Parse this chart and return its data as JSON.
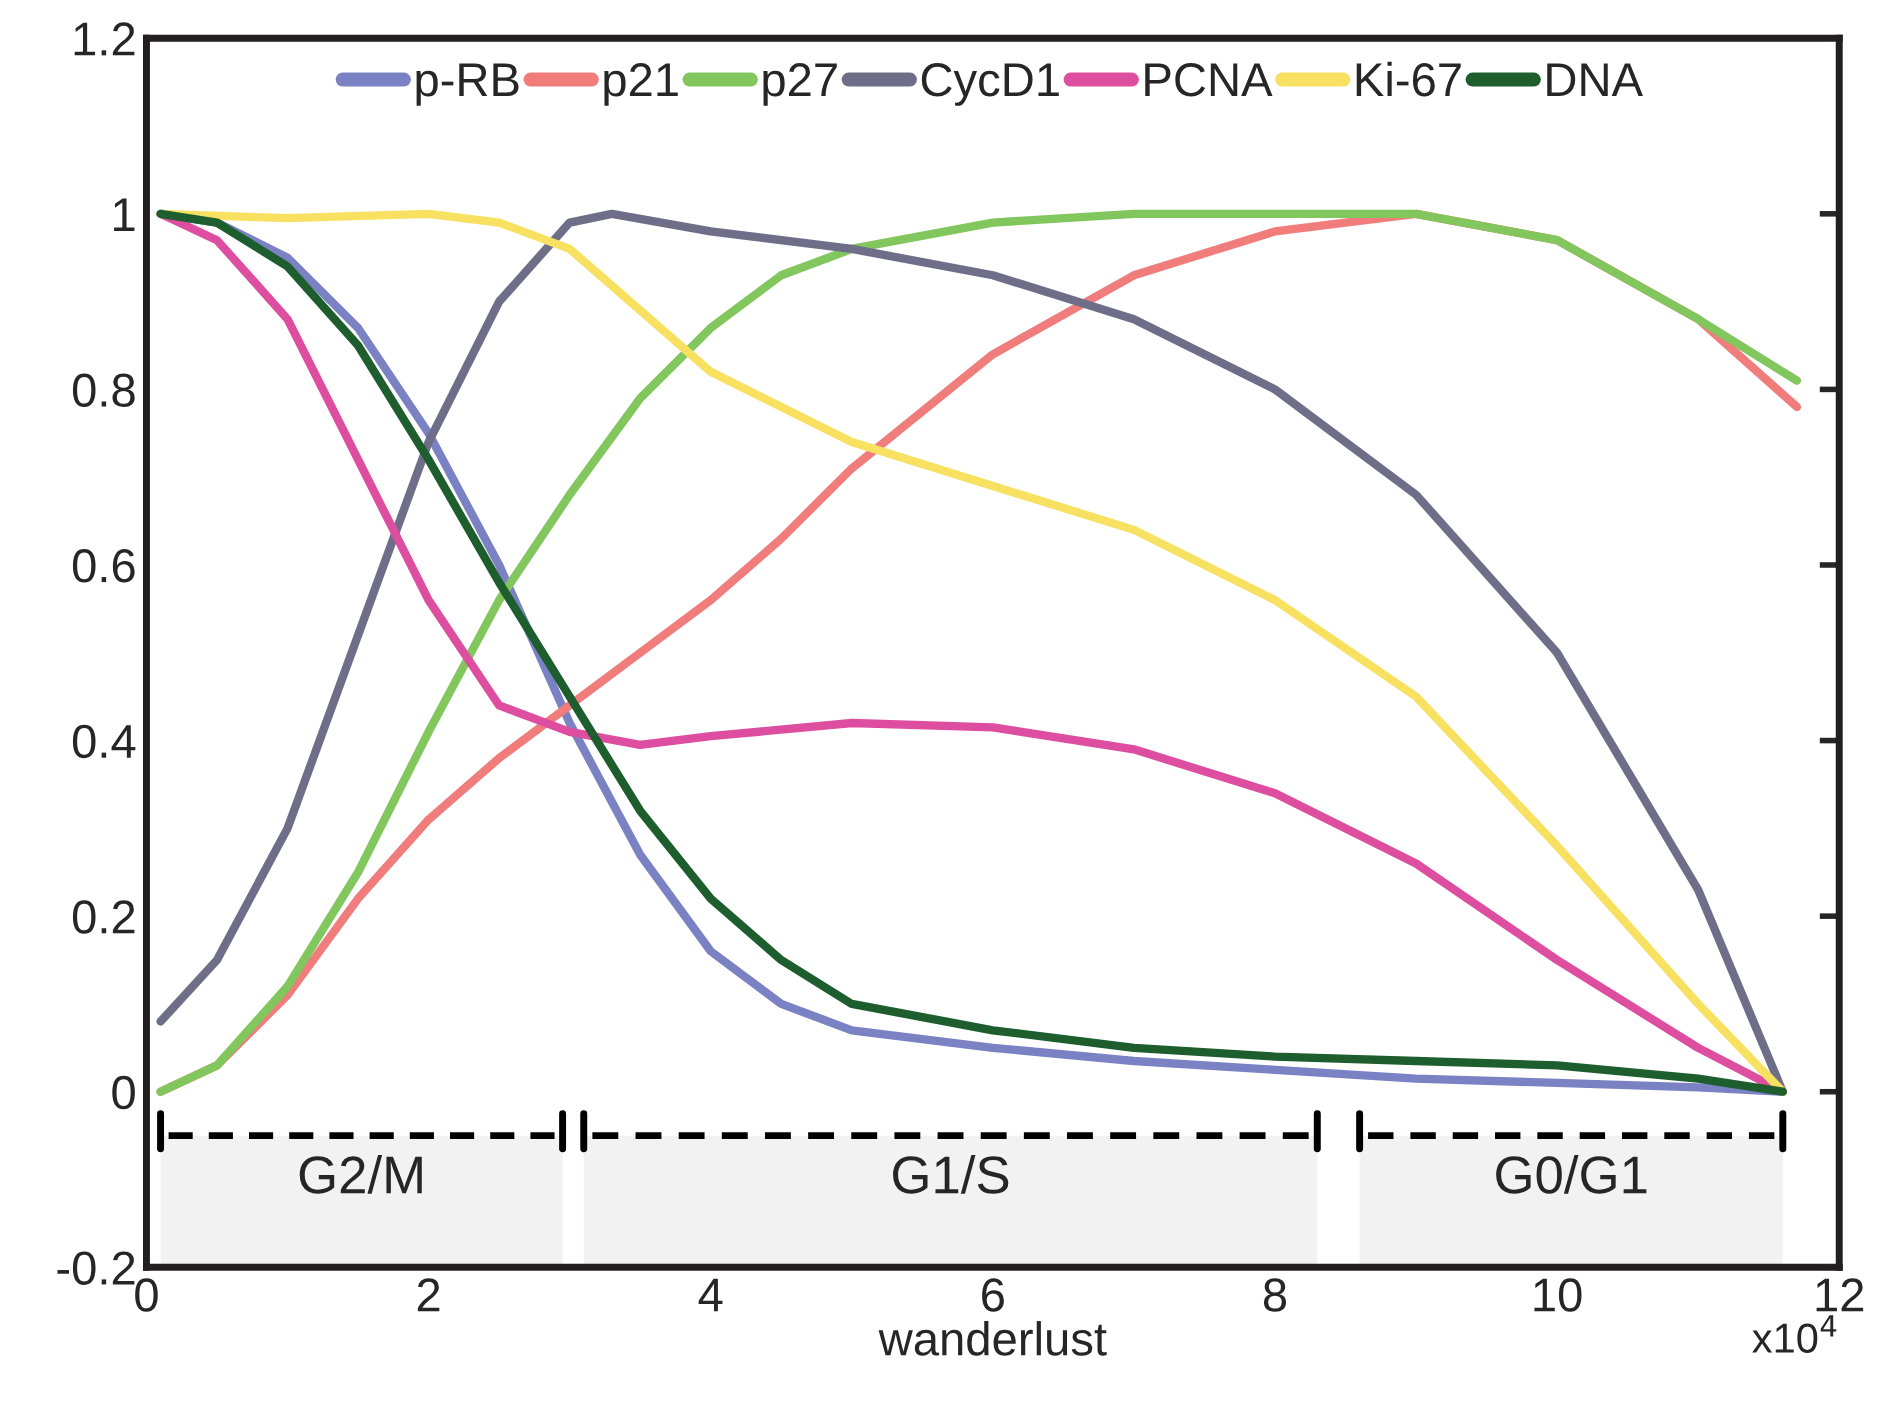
{
  "chart_data": {
    "type": "line",
    "xlabel": "wanderlust",
    "xlim": [
      0,
      12
    ],
    "xticks": [
      0,
      2,
      4,
      6,
      8,
      10,
      12
    ],
    "ylim": [
      -0.2,
      1.2
    ],
    "yticks": [
      -0.2,
      0,
      0.2,
      0.4,
      0.6,
      0.8,
      1,
      1.2
    ],
    "grid": false,
    "legend": "top",
    "marker": "none",
    "line_style": "solid",
    "annotations": [
      "x10$^{4}$"
    ],
    "bands": [
      {
        "axis": "x",
        "from": 0.1,
        "to": 2.95,
        "label": "G2/M",
        "color": "#000000"
      },
      {
        "axis": "x",
        "from": 3.1,
        "to": 8.3,
        "label": "G1/S",
        "color": "#000000"
      },
      {
        "axis": "x",
        "from": 8.6,
        "to": 11.6,
        "label": "G0/G1",
        "color": "#000000"
      }
    ],
    "series": [
      {
        "name": "p-RB",
        "color": "#7b82c4",
        "x": [
          0.1,
          0.5,
          1,
          1.5,
          2,
          2.5,
          3,
          3.5,
          4,
          4.5,
          5,
          6,
          7,
          8,
          9,
          10,
          11,
          11.6
        ],
        "values": [
          1.0,
          0.99,
          0.95,
          0.87,
          0.75,
          0.6,
          0.42,
          0.27,
          0.16,
          0.1,
          0.07,
          0.05,
          0.035,
          0.025,
          0.015,
          0.01,
          0.005,
          0.0
        ]
      },
      {
        "name": "p21",
        "color": "#f07c7c",
        "x": [
          0.1,
          0.5,
          1,
          1.5,
          2,
          2.5,
          3,
          3.5,
          4,
          4.5,
          5,
          6,
          7,
          8,
          9,
          10,
          11,
          11.7
        ],
        "values": [
          0.0,
          0.03,
          0.11,
          0.22,
          0.31,
          0.38,
          0.44,
          0.5,
          0.56,
          0.63,
          0.71,
          0.84,
          0.93,
          0.98,
          1.0,
          0.97,
          0.88,
          0.78
        ]
      },
      {
        "name": "p27",
        "color": "#82c65e",
        "x": [
          0.1,
          0.5,
          1,
          1.5,
          2,
          2.5,
          3,
          3.5,
          4,
          4.5,
          5,
          6,
          7,
          8,
          9,
          10,
          11,
          11.7
        ],
        "values": [
          0.0,
          0.03,
          0.12,
          0.25,
          0.41,
          0.56,
          0.68,
          0.79,
          0.87,
          0.93,
          0.96,
          0.99,
          1.0,
          1.0,
          1.0,
          0.97,
          0.88,
          0.81
        ]
      },
      {
        "name": "CycD1",
        "color": "#6e6e88",
        "x": [
          0.1,
          0.5,
          1,
          1.5,
          2,
          2.5,
          3,
          3.3,
          4,
          5,
          6,
          7,
          8,
          9,
          10,
          11,
          11.6
        ],
        "values": [
          0.08,
          0.15,
          0.3,
          0.52,
          0.74,
          0.9,
          0.99,
          1.0,
          0.98,
          0.96,
          0.93,
          0.88,
          0.8,
          0.68,
          0.5,
          0.23,
          0.0
        ]
      },
      {
        "name": "PCNA",
        "color": "#de4ea0",
        "x": [
          0.1,
          0.5,
          1,
          1.5,
          2,
          2.5,
          3,
          3.5,
          4,
          5,
          6,
          7,
          8,
          9,
          10,
          11,
          11.6
        ],
        "values": [
          1.0,
          0.97,
          0.88,
          0.72,
          0.56,
          0.44,
          0.41,
          0.395,
          0.405,
          0.42,
          0.415,
          0.39,
          0.34,
          0.26,
          0.15,
          0.05,
          0.0
        ]
      },
      {
        "name": "Ki-67",
        "color": "#f8e060",
        "x": [
          0.1,
          1,
          2,
          2.5,
          3,
          3.5,
          4,
          5,
          6,
          7,
          8,
          9,
          10,
          11,
          11.6
        ],
        "values": [
          1.0,
          0.995,
          1.0,
          0.99,
          0.96,
          0.89,
          0.82,
          0.74,
          0.69,
          0.64,
          0.56,
          0.45,
          0.28,
          0.1,
          0.0
        ]
      },
      {
        "name": "DNA",
        "color": "#1e5e2e",
        "x": [
          0.1,
          0.5,
          1,
          1.5,
          2,
          2.5,
          3,
          3.5,
          4,
          4.5,
          5,
          6,
          7,
          8,
          9,
          10,
          11,
          11.6
        ],
        "values": [
          1.0,
          0.99,
          0.94,
          0.85,
          0.72,
          0.58,
          0.45,
          0.32,
          0.22,
          0.15,
          0.1,
          0.07,
          0.05,
          0.04,
          0.035,
          0.03,
          0.015,
          0.0
        ]
      }
    ]
  }
}
